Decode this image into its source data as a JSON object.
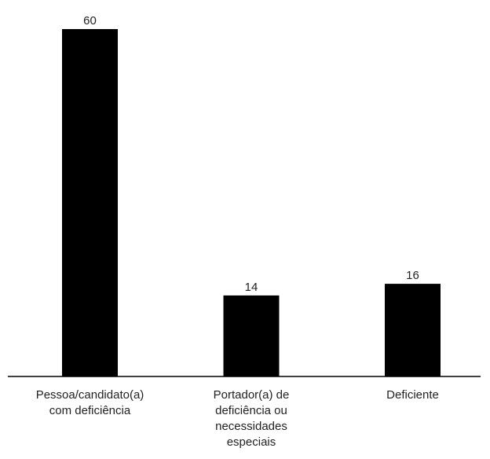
{
  "chart_data": {
    "type": "bar",
    "title": "",
    "xlabel": "",
    "ylabel": "",
    "categories": [
      [
        "Pessoa/candidato(a)",
        "com deficiência"
      ],
      [
        "Portador(a) de",
        "deficiência ou",
        "necessidades",
        "especiais"
      ],
      [
        "Deficiente"
      ]
    ],
    "values": [
      60,
      14,
      16
    ],
    "data_labels": [
      "60",
      "14",
      "16"
    ],
    "ylim": [
      0,
      60
    ],
    "grid": false,
    "legend": "none",
    "colors": {
      "bar": "#000000",
      "axis": "#000000",
      "text": "#222222"
    }
  }
}
